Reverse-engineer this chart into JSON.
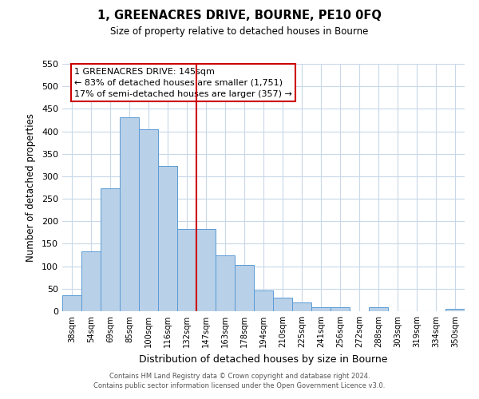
{
  "title": "1, GREENACRES DRIVE, BOURNE, PE10 0FQ",
  "subtitle": "Size of property relative to detached houses in Bourne",
  "xlabel": "Distribution of detached houses by size in Bourne",
  "ylabel": "Number of detached properties",
  "bar_labels": [
    "38sqm",
    "54sqm",
    "69sqm",
    "85sqm",
    "100sqm",
    "116sqm",
    "132sqm",
    "147sqm",
    "163sqm",
    "178sqm",
    "194sqm",
    "210sqm",
    "225sqm",
    "241sqm",
    "256sqm",
    "272sqm",
    "288sqm",
    "303sqm",
    "319sqm",
    "334sqm",
    "350sqm"
  ],
  "bar_heights": [
    35,
    133,
    273,
    432,
    405,
    323,
    182,
    183,
    125,
    103,
    46,
    30,
    20,
    8,
    8,
    0,
    8,
    0,
    0,
    0,
    5
  ],
  "bar_color": "#b8d0e8",
  "bar_edge_color": "#5b9bd5",
  "marker_index": 7,
  "marker_color": "#cc0000",
  "ylim": [
    0,
    550
  ],
  "yticks": [
    0,
    50,
    100,
    150,
    200,
    250,
    300,
    350,
    400,
    450,
    500,
    550
  ],
  "annotation_title": "1 GREENACRES DRIVE: 145sqm",
  "annotation_line1": "← 83% of detached houses are smaller (1,751)",
  "annotation_line2": "17% of semi-detached houses are larger (357) →",
  "footer_line1": "Contains HM Land Registry data © Crown copyright and database right 2024.",
  "footer_line2": "Contains public sector information licensed under the Open Government Licence v3.0.",
  "background_color": "#ffffff",
  "grid_color": "#c8d8e8"
}
